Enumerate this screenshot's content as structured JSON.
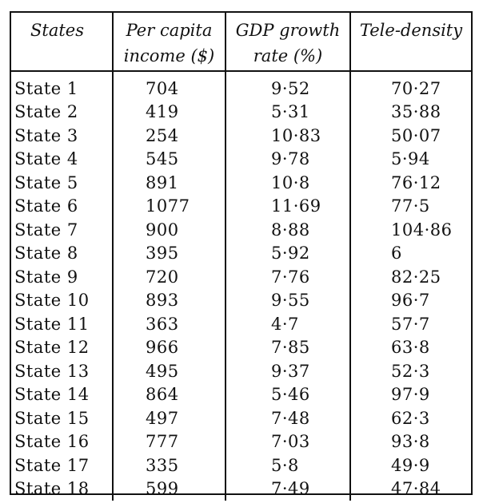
{
  "table": {
    "headers": [
      {
        "line1": "States",
        "line2": ""
      },
      {
        "line1": "Per capita",
        "line2": "income ($)"
      },
      {
        "line1": "GDP growth",
        "line2": "rate (%)"
      },
      {
        "line1": "Tele-density",
        "line2": ""
      }
    ],
    "rows": [
      {
        "state": "State 1",
        "income": "704",
        "gdp": "9·52",
        "tele": "70·27"
      },
      {
        "state": "State 2",
        "income": "419",
        "gdp": "5·31",
        "tele": "35·88"
      },
      {
        "state": "State 3",
        "income": "254",
        "gdp": "10·83",
        "tele": "50·07"
      },
      {
        "state": "State 4",
        "income": "545",
        "gdp": "9·78",
        "tele": "5·94"
      },
      {
        "state": "State 5",
        "income": "891",
        "gdp": "10·8",
        "tele": "76·12"
      },
      {
        "state": "State 6",
        "income": "1077",
        "gdp": "11·69",
        "tele": "77·5"
      },
      {
        "state": "State 7",
        "income": "900",
        "gdp": "8·88",
        "tele": "104·86"
      },
      {
        "state": "State 8",
        "income": "395",
        "gdp": "5·92",
        "tele": "6"
      },
      {
        "state": "State 9",
        "income": "720",
        "gdp": "7·76",
        "tele": "82·25"
      },
      {
        "state": "State 10",
        "income": "893",
        "gdp": "9·55",
        "tele": "96·7"
      },
      {
        "state": "State 11",
        "income": "363",
        "gdp": "4·7",
        "tele": "57·7"
      },
      {
        "state": "State 12",
        "income": "966",
        "gdp": "7·85",
        "tele": "63·8"
      },
      {
        "state": "State 13",
        "income": "495",
        "gdp": "9·37",
        "tele": "52·3"
      },
      {
        "state": "State 14",
        "income": "864",
        "gdp": "5·46",
        "tele": "97·9"
      },
      {
        "state": "State 15",
        "income": "497",
        "gdp": "7·48",
        "tele": "62·3"
      },
      {
        "state": "State 16",
        "income": "777",
        "gdp": "7·03",
        "tele": "93·8"
      },
      {
        "state": "State 17",
        "income": "335",
        "gdp": "5·8",
        "tele": "49·9"
      },
      {
        "state": "State 18",
        "income": "599",
        "gdp": "7·49",
        "tele": "47·84"
      }
    ]
  }
}
